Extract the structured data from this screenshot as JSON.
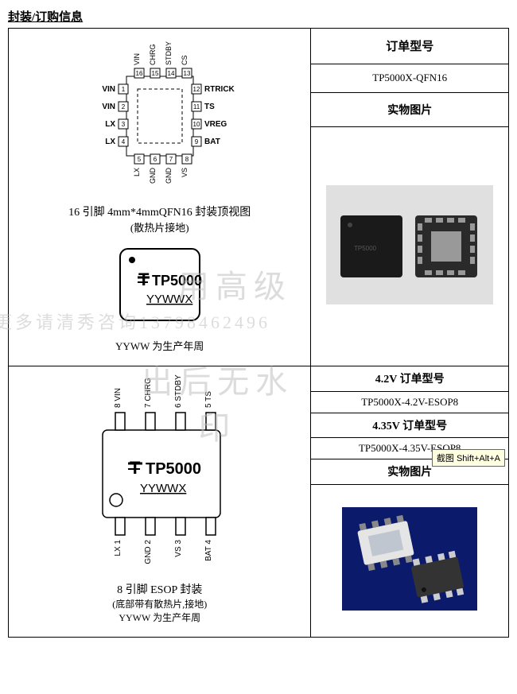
{
  "section_title": "封装/订购信息",
  "qfn": {
    "top_pins": [
      "VIN",
      "CHRG",
      "STDBY",
      "CS"
    ],
    "top_nums": [
      "16",
      "15",
      "14",
      "13"
    ],
    "right_nums": [
      "12",
      "11",
      "10",
      "9"
    ],
    "right_pins": [
      "RTRICK",
      "TS",
      "VREG",
      "BAT"
    ],
    "left_nums": [
      "1",
      "2",
      "3",
      "4"
    ],
    "left_pins": [
      "VIN",
      "VIN",
      "LX",
      "LX"
    ],
    "bottom_nums": [
      "5",
      "6",
      "7",
      "8"
    ],
    "bottom_pins": [
      "LX",
      "GND",
      "GND",
      "VS"
    ],
    "caption1": "16 引脚 4mm*4mmQFN16 封装顶视图",
    "caption2": "(散热片接地)",
    "chip_line1": "TP5000",
    "chip_line2": "YYWWX",
    "caption3": "YYWW 为生产年周"
  },
  "qfn_order": {
    "order_hdr": "订单型号",
    "order_val": "TP5000X-QFN16",
    "photo_hdr": "实物图片",
    "photo_front_color": "#1a1a1a",
    "photo_back_pad_color": "#999",
    "photo_back_body": "#2a2a2a",
    "photo_bg": "#e0e0e0"
  },
  "esop": {
    "top_pins": [
      "8 VIN",
      "7 CHRG",
      "6 STDBY",
      "5 TS"
    ],
    "bottom_pins": [
      "LX 1",
      "GND 2",
      "VS 3",
      "BAT 4"
    ],
    "chip_line1": "TP5000",
    "chip_line2": "YYWWX",
    "caption1": "8 引脚 ESOP 封装",
    "caption2": "(底部带有散热片,接地)",
    "caption3": "YYWW 为生产年周"
  },
  "esop_order": {
    "hdr1": "4.2V 订单型号",
    "val1": "TP5000X-4.2V-ESOP8",
    "hdr2": "4.35V 订单型号",
    "val2": "TP5000X-4.35V-ESOP8",
    "photo_hdr": "实物图片",
    "photo_bg": "#0b1a6b",
    "photo_body": "#e5e5e5",
    "photo_body2": "#333"
  },
  "watermarks": {
    "w1": "用高级",
    "w2": "更多请清秀咨询13798462496",
    "w3": "出后无水印"
  },
  "tooltip": "截图 Shift+Alt+A",
  "colors": {
    "border": "#000000",
    "bg": "#ffffff",
    "text": "#000000"
  }
}
